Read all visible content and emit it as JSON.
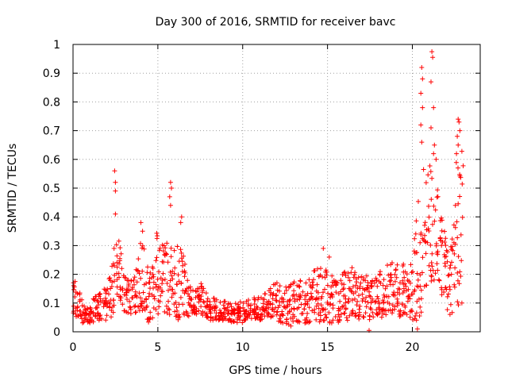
{
  "chart_data": {
    "type": "scatter",
    "title": "Day 300 of 2016, SRMTID for receiver bavc",
    "xlabel": "GPS time / hours",
    "ylabel": "SRMTID / TECUs",
    "xlim": [
      0,
      24
    ],
    "ylim": [
      0,
      1
    ],
    "xticks": [
      0,
      5,
      10,
      15,
      20
    ],
    "xtick_labels": [
      "0",
      "5",
      "10",
      "15",
      "20"
    ],
    "yticks": [
      0,
      0.1,
      0.2,
      0.3,
      0.4,
      0.5,
      0.6,
      0.7,
      0.8,
      0.9,
      1
    ],
    "ytick_labels": [
      "0",
      "0.1",
      "0.2",
      "0.3",
      "0.4",
      "0.5",
      "0.6",
      "0.7",
      "0.8",
      "0.9",
      "1"
    ],
    "grid": true,
    "marker": "plus",
    "marker_color": "#ff0000",
    "profile_note": "approximate envelope of dense scatter, sampled every 0.25 h: [hour, typical low, typical high]",
    "profile": [
      [
        0.0,
        0.06,
        0.19
      ],
      [
        0.25,
        0.05,
        0.16
      ],
      [
        0.5,
        0.02,
        0.12
      ],
      [
        0.75,
        0.02,
        0.1
      ],
      [
        1.0,
        0.03,
        0.11
      ],
      [
        1.25,
        0.03,
        0.13
      ],
      [
        1.5,
        0.04,
        0.14
      ],
      [
        1.75,
        0.04,
        0.15
      ],
      [
        2.0,
        0.04,
        0.17
      ],
      [
        2.25,
        0.04,
        0.2
      ],
      [
        2.5,
        0.08,
        0.35
      ],
      [
        2.75,
        0.12,
        0.33
      ],
      [
        3.0,
        0.05,
        0.2
      ],
      [
        3.25,
        0.04,
        0.18
      ],
      [
        3.5,
        0.05,
        0.19
      ],
      [
        3.75,
        0.06,
        0.25
      ],
      [
        4.0,
        0.08,
        0.34
      ],
      [
        4.25,
        0.04,
        0.29
      ],
      [
        4.5,
        0.02,
        0.2
      ],
      [
        4.75,
        0.04,
        0.26
      ],
      [
        5.0,
        0.06,
        0.38
      ],
      [
        5.25,
        0.08,
        0.34
      ],
      [
        5.5,
        0.05,
        0.31
      ],
      [
        5.75,
        0.06,
        0.3
      ],
      [
        6.0,
        0.05,
        0.3
      ],
      [
        6.25,
        0.04,
        0.34
      ],
      [
        6.5,
        0.06,
        0.27
      ],
      [
        6.75,
        0.05,
        0.18
      ],
      [
        7.0,
        0.05,
        0.15
      ],
      [
        7.25,
        0.06,
        0.16
      ],
      [
        7.5,
        0.06,
        0.18
      ],
      [
        7.75,
        0.05,
        0.15
      ],
      [
        8.0,
        0.04,
        0.13
      ],
      [
        8.25,
        0.04,
        0.12
      ],
      [
        8.5,
        0.04,
        0.12
      ],
      [
        8.75,
        0.04,
        0.11
      ],
      [
        9.0,
        0.04,
        0.11
      ],
      [
        9.25,
        0.03,
        0.1
      ],
      [
        9.5,
        0.03,
        0.1
      ],
      [
        9.75,
        0.03,
        0.1
      ],
      [
        10.0,
        0.03,
        0.11
      ],
      [
        10.25,
        0.04,
        0.11
      ],
      [
        10.5,
        0.04,
        0.12
      ],
      [
        10.75,
        0.04,
        0.12
      ],
      [
        11.0,
        0.04,
        0.13
      ],
      [
        11.25,
        0.04,
        0.13
      ],
      [
        11.5,
        0.05,
        0.14
      ],
      [
        11.75,
        0.04,
        0.16
      ],
      [
        12.0,
        0.04,
        0.18
      ],
      [
        12.25,
        0.03,
        0.17
      ],
      [
        12.5,
        0.03,
        0.16
      ],
      [
        12.75,
        0.02,
        0.17
      ],
      [
        13.0,
        0.02,
        0.18
      ],
      [
        13.25,
        0.03,
        0.2
      ],
      [
        13.5,
        0.02,
        0.19
      ],
      [
        13.75,
        0.03,
        0.18
      ],
      [
        14.0,
        0.02,
        0.2
      ],
      [
        14.25,
        0.02,
        0.22
      ],
      [
        14.5,
        0.03,
        0.22
      ],
      [
        14.75,
        0.03,
        0.23
      ],
      [
        15.0,
        0.04,
        0.23
      ],
      [
        15.25,
        0.02,
        0.2
      ],
      [
        15.5,
        0.03,
        0.18
      ],
      [
        15.75,
        0.03,
        0.19
      ],
      [
        16.0,
        0.04,
        0.22
      ],
      [
        16.25,
        0.03,
        0.22
      ],
      [
        16.5,
        0.04,
        0.23
      ],
      [
        16.75,
        0.04,
        0.22
      ],
      [
        17.0,
        0.05,
        0.2
      ],
      [
        17.25,
        0.05,
        0.2
      ],
      [
        17.5,
        0.04,
        0.18
      ],
      [
        17.75,
        0.05,
        0.19
      ],
      [
        18.0,
        0.05,
        0.21
      ],
      [
        18.25,
        0.05,
        0.22
      ],
      [
        18.5,
        0.06,
        0.24
      ],
      [
        18.75,
        0.06,
        0.25
      ],
      [
        19.0,
        0.06,
        0.25
      ],
      [
        19.25,
        0.05,
        0.22
      ],
      [
        19.5,
        0.06,
        0.25
      ],
      [
        19.75,
        0.04,
        0.23
      ],
      [
        20.0,
        0.03,
        0.28
      ],
      [
        20.25,
        0.04,
        0.4
      ],
      [
        20.5,
        0.06,
        0.6
      ],
      [
        20.75,
        0.15,
        0.62
      ],
      [
        21.0,
        0.18,
        0.6
      ],
      [
        21.25,
        0.16,
        0.52
      ],
      [
        21.5,
        0.18,
        0.5
      ],
      [
        21.75,
        0.12,
        0.4
      ],
      [
        22.0,
        0.08,
        0.32
      ],
      [
        22.25,
        0.04,
        0.3
      ],
      [
        22.5,
        0.05,
        0.55
      ],
      [
        22.75,
        0.1,
        0.72
      ]
    ],
    "outliers": [
      [
        2.45,
        0.56
      ],
      [
        2.5,
        0.52
      ],
      [
        2.5,
        0.49
      ],
      [
        2.5,
        0.41
      ],
      [
        5.75,
        0.52
      ],
      [
        5.8,
        0.5
      ],
      [
        5.7,
        0.47
      ],
      [
        5.75,
        0.44
      ],
      [
        6.4,
        0.4
      ],
      [
        6.35,
        0.38
      ],
      [
        4.1,
        0.35
      ],
      [
        4.0,
        0.38
      ],
      [
        14.75,
        0.29
      ],
      [
        15.1,
        0.26
      ],
      [
        20.55,
        0.92
      ],
      [
        20.6,
        0.88
      ],
      [
        20.5,
        0.83
      ],
      [
        20.6,
        0.78
      ],
      [
        20.5,
        0.72
      ],
      [
        20.55,
        0.66
      ],
      [
        21.15,
        0.975
      ],
      [
        21.2,
        0.955
      ],
      [
        21.1,
        0.87
      ],
      [
        21.25,
        0.78
      ],
      [
        21.1,
        0.71
      ],
      [
        21.3,
        0.65
      ],
      [
        21.25,
        0.62
      ],
      [
        21.4,
        0.6
      ],
      [
        22.7,
        0.74
      ],
      [
        22.75,
        0.73
      ],
      [
        22.8,
        0.7
      ],
      [
        22.65,
        0.68
      ],
      [
        22.7,
        0.65
      ],
      [
        22.6,
        0.62
      ],
      [
        17.45,
        0.005
      ],
      [
        20.3,
        0.01
      ]
    ]
  }
}
